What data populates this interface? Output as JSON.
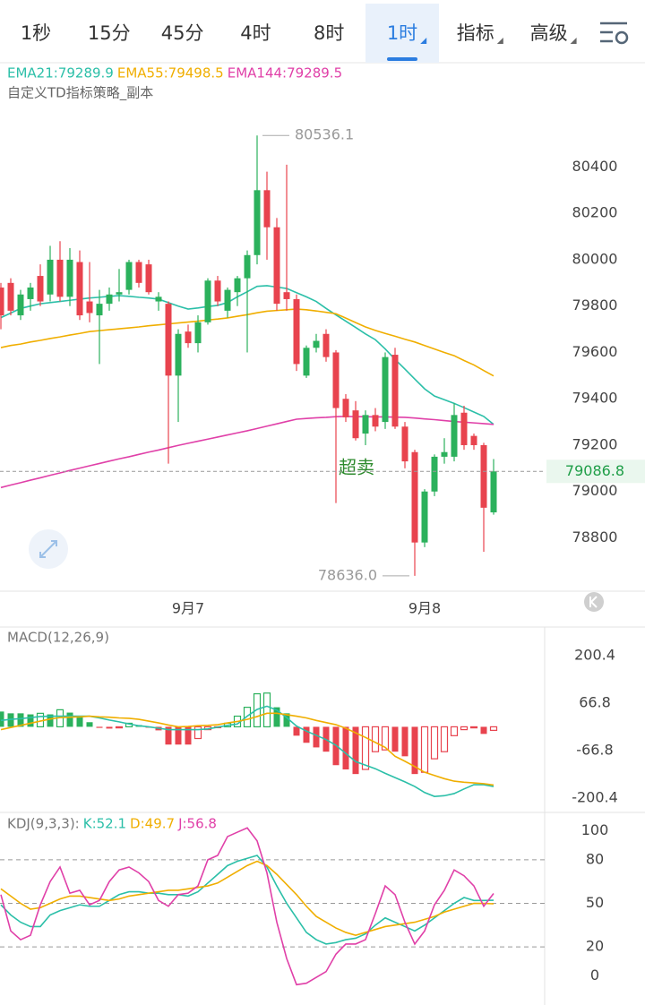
{
  "tabs": [
    {
      "label": "1秒"
    },
    {
      "label": "15分"
    },
    {
      "label": "45分"
    },
    {
      "label": "4时"
    },
    {
      "label": "8时"
    },
    {
      "label": "1时",
      "active": true,
      "dropdown": true
    },
    {
      "label": "指标",
      "dropdown": true
    },
    {
      "label": "高级",
      "dropdown": true
    }
  ],
  "chart_data": [
    {
      "type": "candlestick",
      "subtitle": "自定义TD指标策略_副本",
      "annotation": "超卖",
      "up_color": "#2bb15c",
      "down_color": "#e8434e",
      "categories": [
        null,
        null,
        null,
        null,
        null,
        null,
        null,
        null,
        null,
        null,
        null,
        null,
        null,
        null,
        null,
        null,
        null,
        null,
        null,
        "9月7",
        null,
        null,
        null,
        null,
        null,
        null,
        null,
        null,
        null,
        null,
        null,
        null,
        null,
        null,
        null,
        null,
        null,
        null,
        null,
        null,
        null,
        null,
        null,
        "9月8",
        null,
        null,
        null,
        null,
        null,
        null,
        null
      ],
      "ohlc": [
        [
          79880,
          79900,
          79700,
          79760
        ],
        [
          79900,
          79920,
          79760,
          79780
        ],
        [
          79760,
          79870,
          79740,
          79850
        ],
        [
          79830,
          79900,
          79780,
          79880
        ],
        [
          79930,
          79980,
          79800,
          79820
        ],
        [
          79850,
          80060,
          79820,
          80000
        ],
        [
          80000,
          80080,
          79820,
          79840
        ],
        [
          79840,
          80050,
          79800,
          80000
        ],
        [
          79990,
          80040,
          79740,
          79760
        ],
        [
          79820,
          79990,
          79730,
          79770
        ],
        [
          79760,
          79870,
          79550,
          79810
        ],
        [
          79810,
          79880,
          79780,
          79850
        ],
        [
          79850,
          79960,
          79820,
          79860
        ],
        [
          79870,
          80000,
          79850,
          79990
        ],
        [
          79990,
          80000,
          79880,
          79900
        ],
        [
          79980,
          80000,
          79850,
          79860
        ],
        [
          79820,
          79860,
          79780,
          79840
        ],
        [
          79810,
          79820,
          79120,
          79500
        ],
        [
          79500,
          79700,
          79300,
          79680
        ],
        [
          79690,
          79720,
          79620,
          79640
        ],
        [
          79640,
          79760,
          79600,
          79730
        ],
        [
          79730,
          79920,
          79720,
          79910
        ],
        [
          79910,
          79930,
          79800,
          79820
        ],
        [
          79780,
          79880,
          79750,
          79870
        ],
        [
          79860,
          79930,
          79800,
          79920
        ],
        [
          79920,
          80040,
          79600,
          80020
        ],
        [
          80020,
          80536.1,
          79980,
          80300
        ],
        [
          80300,
          80380,
          80000,
          80140
        ],
        [
          80140,
          80180,
          79780,
          79810
        ],
        [
          79860,
          80410,
          79780,
          79830
        ],
        [
          79830,
          79850,
          79520,
          79550
        ],
        [
          79500,
          79630,
          79490,
          79620
        ],
        [
          79620,
          79680,
          79600,
          79650
        ],
        [
          79680,
          79700,
          79560,
          79580
        ],
        [
          79600,
          79610,
          78950,
          79360
        ],
        [
          79400,
          79420,
          79300,
          79320
        ],
        [
          79350,
          79390,
          79220,
          79230
        ],
        [
          79250,
          79350,
          79200,
          79330
        ],
        [
          79330,
          79360,
          79260,
          79280
        ],
        [
          79300,
          79600,
          79270,
          79580
        ],
        [
          79590,
          79620,
          79270,
          79280
        ],
        [
          79280,
          79300,
          79100,
          79130
        ],
        [
          79170,
          79180,
          78636,
          78780
        ],
        [
          78780,
          79010,
          78760,
          79000
        ],
        [
          79000,
          79160,
          78980,
          79150
        ],
        [
          79150,
          79230,
          79120,
          79170
        ],
        [
          79150,
          79380,
          79130,
          79330
        ],
        [
          79340,
          79370,
          79180,
          79200
        ],
        [
          79240,
          79250,
          79180,
          79200
        ],
        [
          79200,
          79210,
          78740,
          78930
        ],
        [
          78910,
          79140,
          78900,
          79086.8
        ]
      ],
      "series": [
        {
          "name": "EMA21:79289.9",
          "color": "#2bbfa8",
          "values": [
            79750,
            79770,
            79790,
            79800,
            79810,
            79815,
            79820,
            79825,
            79830,
            79835,
            79838,
            79842,
            79845,
            79842,
            79838,
            79835,
            79830,
            79815,
            79800,
            79787,
            79792,
            79798,
            79803,
            79815,
            79840,
            79862,
            79885,
            79888,
            79882,
            79876,
            79858,
            79840,
            79820,
            79790,
            79762,
            79735,
            79708,
            79680,
            79655,
            79615,
            79570,
            79528,
            79485,
            79443,
            79412,
            79396,
            79380,
            79362,
            79343,
            79324,
            79289.9
          ]
        },
        {
          "name": "EMA55:79498.5",
          "color": "#f0ae00",
          "values": [
            79621,
            79630,
            79636,
            79645,
            79652,
            79660,
            79667,
            79675,
            79682,
            79690,
            79694,
            79698,
            79702,
            79706,
            79710,
            79715,
            79719,
            79723,
            79727,
            79731,
            79735,
            79740,
            79744,
            79749,
            79756,
            79763,
            79771,
            79778,
            79781,
            79784,
            79787,
            79784,
            79779,
            79773,
            79767,
            79748,
            79729,
            79710,
            79695,
            79682,
            79670,
            79657,
            79645,
            79630,
            79615,
            79600,
            79586,
            79565,
            79546,
            79522,
            79498.5
          ]
        },
        {
          "name": "EMA144:79289.5",
          "color": "#e040a8",
          "values": [
            79017,
            79028,
            79038,
            79049,
            79059,
            79070,
            79080,
            79091,
            79101,
            79111,
            79121,
            79131,
            79141,
            79150,
            79160,
            79170,
            79179,
            79189,
            79199,
            79208,
            79217,
            79226,
            79235,
            79244,
            79253,
            79262,
            79272,
            79282,
            79292,
            79302,
            79312,
            79315,
            79318,
            79320,
            79323,
            79324,
            79323,
            79323,
            79322,
            79322,
            79321,
            79320,
            79317,
            79313,
            79310,
            79306,
            79302,
            79299,
            79296,
            79293,
            79289.5
          ]
        }
      ],
      "high_label": 80536.1,
      "low_label": {
        "value": 78636,
        "label": "78636.0"
      },
      "last_price": 79086.8,
      "ylim": [
        78570,
        80850
      ],
      "yticks": [
        80400,
        80200,
        80000,
        79800,
        79600,
        79400,
        79200,
        79000,
        78800
      ]
    },
    {
      "type": "macd",
      "title": "MACD(12,26,9)",
      "up_color": "#2bb15c",
      "down_color": "#e8434e",
      "histogram": [
        43,
        38,
        38,
        35,
        38,
        35,
        48,
        40,
        30,
        13,
        -3,
        -5,
        -3,
        10,
        5,
        -2,
        -10,
        -50,
        -50,
        -50,
        -33,
        -8,
        -2,
        10,
        30,
        55,
        93,
        95,
        55,
        38,
        -25,
        -45,
        -58,
        -70,
        -108,
        -120,
        -133,
        -120,
        -70,
        -65,
        -70,
        -83,
        -133,
        -128,
        -90,
        -70,
        -25,
        -8,
        -3,
        -20,
        -10
      ],
      "series": [
        {
          "color": "#2bbfa8",
          "values": [
            18,
            21,
            23,
            26,
            29,
            30,
            30,
            30,
            30,
            30,
            25,
            19,
            14,
            8,
            3,
            0,
            -4,
            -8,
            -8,
            -8,
            -8,
            -6,
            -1,
            4,
            8,
            30,
            49,
            58,
            47,
            26,
            2,
            -12,
            -24,
            -36,
            -52,
            -75,
            -98,
            -108,
            -118,
            -131,
            -143,
            -155,
            -168,
            -185,
            -196,
            -194,
            -188,
            -175,
            -163,
            -163,
            -168
          ]
        },
        {
          "color": "#f0ae00",
          "values": [
            -8,
            -2,
            4,
            10,
            16,
            22,
            26,
            27,
            28,
            30,
            28,
            27,
            25,
            24,
            21,
            16,
            11,
            5,
            0,
            1,
            3,
            4,
            6,
            11,
            15,
            21,
            29,
            38,
            38,
            34,
            30,
            25,
            18,
            12,
            6,
            -4,
            -17,
            -30,
            -44,
            -58,
            -83,
            -97,
            -112,
            -128,
            -137,
            -146,
            -153,
            -156,
            -158,
            -160,
            -164
          ]
        }
      ],
      "ylim": [
        -236,
        281
      ],
      "yticks": [
        200.4,
        66.8,
        -66.8,
        -200.4
      ]
    },
    {
      "type": "line",
      "title": "KDJ(9,3,3):",
      "series": [
        {
          "name": "K:52.1",
          "color": "#2bbfa8",
          "values": [
            49,
            42,
            37,
            34,
            34,
            42,
            45,
            47,
            49,
            48,
            48,
            52,
            56,
            58,
            58,
            57,
            57,
            56,
            56,
            55,
            58,
            64,
            70,
            76,
            79,
            81,
            83,
            75,
            62,
            50,
            40,
            30,
            25,
            22,
            23,
            25,
            26,
            29,
            35,
            40,
            37,
            34,
            31,
            35,
            40,
            45,
            50,
            54,
            52,
            52,
            52.1
          ]
        },
        {
          "name": "D:49.7",
          "color": "#f0ae00",
          "values": [
            60,
            55,
            50,
            46,
            47,
            50,
            53,
            55,
            55,
            54,
            53,
            52,
            53,
            55,
            56,
            57,
            58,
            59,
            59,
            60,
            61,
            62,
            64,
            68,
            72,
            76,
            79,
            76,
            70,
            63,
            56,
            48,
            41,
            37,
            33,
            30,
            28,
            30,
            32,
            34,
            35,
            36,
            37,
            39,
            41,
            44,
            46,
            48,
            50,
            50,
            49.7
          ]
        },
        {
          "name": "J:56.8",
          "color": "#e040a8",
          "values": [
            56,
            31,
            25,
            28,
            49,
            65,
            75,
            57,
            59,
            49,
            52,
            65,
            73,
            75,
            71,
            65,
            52,
            48,
            56,
            57,
            62,
            80,
            83,
            96,
            99,
            102,
            93,
            71,
            37,
            12,
            -6,
            -5,
            -1,
            3,
            15,
            22,
            22,
            25,
            43,
            62,
            56,
            37,
            22,
            31,
            49,
            59,
            73,
            69,
            62,
            48,
            56.8
          ]
        }
      ],
      "hlines": [
        80,
        50,
        20
      ],
      "ylim": [
        -20,
        112
      ],
      "yticks": [
        100,
        80,
        50,
        20,
        0
      ]
    }
  ]
}
